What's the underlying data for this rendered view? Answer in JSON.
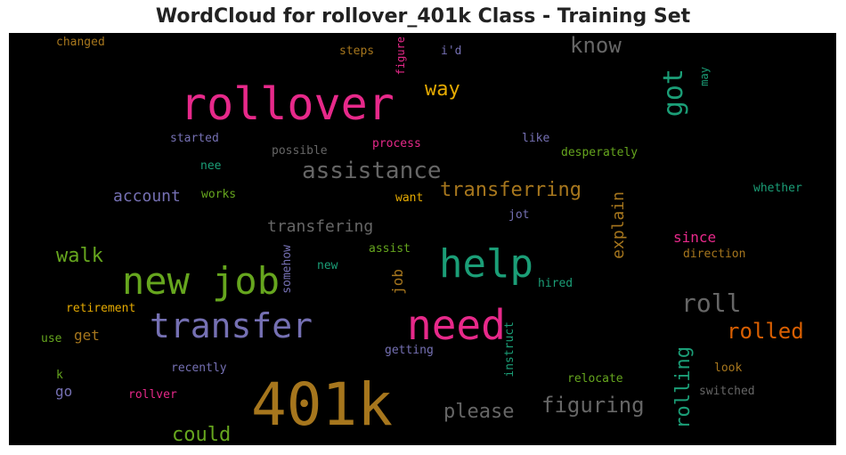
{
  "chart_data": {
    "type": "wordcloud",
    "title": "WordCloud for rollover_401k Class - Training Set",
    "background": "#000000",
    "words": [
      {
        "text": "401k",
        "color": "#a6761d"
      },
      {
        "text": "rollover",
        "color": "#e7298a"
      },
      {
        "text": "need",
        "color": "#e7298a"
      },
      {
        "text": "help",
        "color": "#1b9e77"
      },
      {
        "text": "new job",
        "color": "#66a61e"
      },
      {
        "text": "transfer",
        "color": "#7570b3"
      },
      {
        "text": "roll",
        "color": "#666666"
      },
      {
        "text": "assistance",
        "color": "#666666"
      },
      {
        "text": "transferring",
        "color": "#a6761d"
      },
      {
        "text": "got",
        "color": "#1b9e77"
      },
      {
        "text": "know",
        "color": "#666666"
      },
      {
        "text": "rolled",
        "color": "#d95f02"
      },
      {
        "text": "rolling",
        "color": "#1b9e77"
      },
      {
        "text": "way",
        "color": "#e6ab02"
      },
      {
        "text": "please",
        "color": "#666666"
      },
      {
        "text": "figuring",
        "color": "#666666"
      },
      {
        "text": "could",
        "color": "#66a61e"
      },
      {
        "text": "walk",
        "color": "#66a61e"
      },
      {
        "text": "account",
        "color": "#7570b3"
      },
      {
        "text": "transfering",
        "color": "#666666"
      },
      {
        "text": "explain",
        "color": "#a6761d"
      },
      {
        "text": "since",
        "color": "#e7298a"
      },
      {
        "text": "job",
        "color": "#a6761d"
      },
      {
        "text": "get",
        "color": "#a6761d"
      },
      {
        "text": "go",
        "color": "#7570b3"
      },
      {
        "text": "changed",
        "color": "#a6761d"
      },
      {
        "text": "steps",
        "color": "#a6761d"
      },
      {
        "text": "figure",
        "color": "#e7298a"
      },
      {
        "text": "i'd",
        "color": "#7570b3"
      },
      {
        "text": "may",
        "color": "#1b9e77"
      },
      {
        "text": "started",
        "color": "#7570b3"
      },
      {
        "text": "possible",
        "color": "#666666"
      },
      {
        "text": "process",
        "color": "#e7298a"
      },
      {
        "text": "like",
        "color": "#7570b3"
      },
      {
        "text": "desperately",
        "color": "#66a61e"
      },
      {
        "text": "nee",
        "color": "#1b9e77"
      },
      {
        "text": "works",
        "color": "#66a61e"
      },
      {
        "text": "want",
        "color": "#e6ab02"
      },
      {
        "text": "whether",
        "color": "#1b9e77"
      },
      {
        "text": "jot",
        "color": "#7570b3"
      },
      {
        "text": "assist",
        "color": "#66a61e"
      },
      {
        "text": "direction",
        "color": "#a6761d"
      },
      {
        "text": "somehow",
        "color": "#7570b3"
      },
      {
        "text": "new",
        "color": "#1b9e77"
      },
      {
        "text": "hired",
        "color": "#1b9e77"
      },
      {
        "text": "retirement",
        "color": "#e6ab02"
      },
      {
        "text": "use",
        "color": "#66a61e"
      },
      {
        "text": "instruct",
        "color": "#1b9e77"
      },
      {
        "text": "getting",
        "color": "#7570b3"
      },
      {
        "text": "recently",
        "color": "#7570b3"
      },
      {
        "text": "k",
        "color": "#66a61e"
      },
      {
        "text": "relocate",
        "color": "#66a61e"
      },
      {
        "text": "look",
        "color": "#a6761d"
      },
      {
        "text": "switched",
        "color": "#666666"
      },
      {
        "text": "rollver",
        "color": "#e7298a"
      }
    ]
  }
}
